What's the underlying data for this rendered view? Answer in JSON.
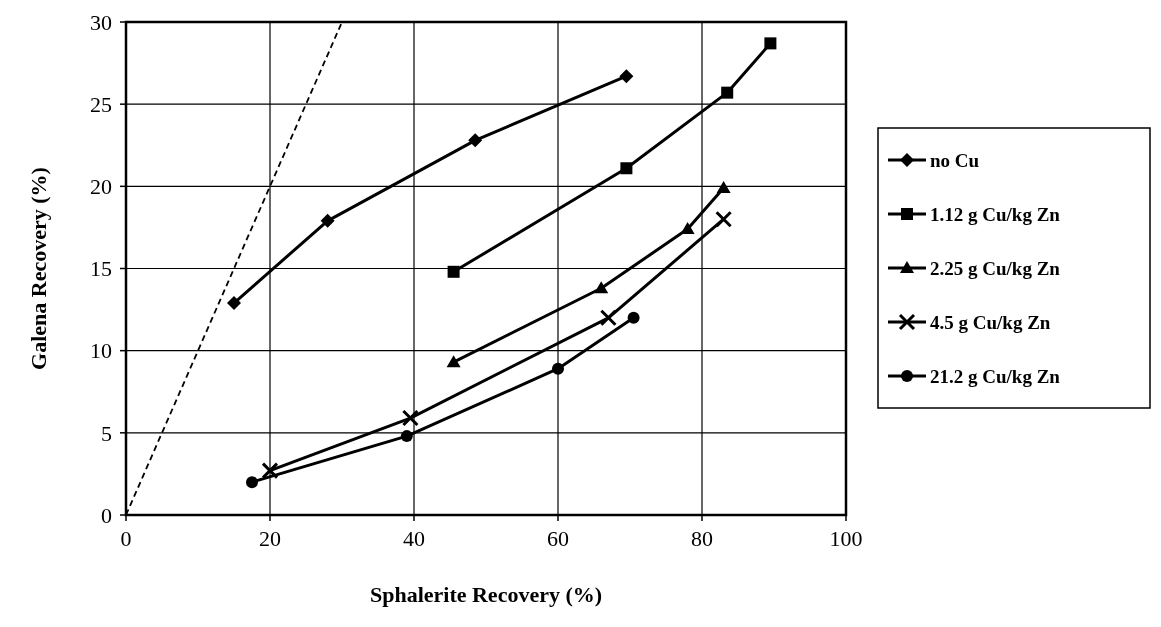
{
  "chart_data": {
    "type": "line",
    "xlabel": "Sphalerite Recovery (%)",
    "ylabel": "Galena Recovery (%)",
    "xlim": [
      0,
      100
    ],
    "ylim": [
      0,
      30
    ],
    "xticks": [
      0,
      20,
      40,
      60,
      80,
      100
    ],
    "yticks": [
      0,
      5,
      10,
      15,
      20,
      25,
      30
    ],
    "grid": true,
    "legend": "right",
    "series": [
      {
        "name": "no Cu",
        "color": "#000000",
        "marker": "diamond",
        "x": [
          15,
          28,
          48.5,
          69.5
        ],
        "values": [
          12.9,
          17.9,
          22.8,
          26.7
        ]
      },
      {
        "name": "1.12 g Cu/kg Zn",
        "color": "#000000",
        "marker": "square",
        "x": [
          45.5,
          69.5,
          83.5,
          89.5
        ],
        "values": [
          14.8,
          21.1,
          25.7,
          28.7
        ]
      },
      {
        "name": "2.25 g Cu/kg Zn",
        "color": "#000000",
        "marker": "triangle",
        "x": [
          45.5,
          66,
          78,
          83
        ],
        "values": [
          9.3,
          13.8,
          17.4,
          19.9
        ]
      },
      {
        "name": "4.5 g Cu/kg Zn",
        "color": "#000000",
        "marker": "cross",
        "x": [
          20,
          39.5,
          67,
          83
        ],
        "values": [
          2.7,
          5.9,
          12,
          18
        ]
      },
      {
        "name": "21.2 g Cu/kg Zn",
        "color": "#000000",
        "marker": "circle",
        "x": [
          17.5,
          39,
          60,
          70.5
        ],
        "values": [
          2,
          4.8,
          8.9,
          12
        ]
      },
      {
        "color": "#000000",
        "marker": "none",
        "line_style": "dashed",
        "x": [
          0,
          30
        ],
        "values": [
          0,
          30
        ]
      }
    ]
  }
}
